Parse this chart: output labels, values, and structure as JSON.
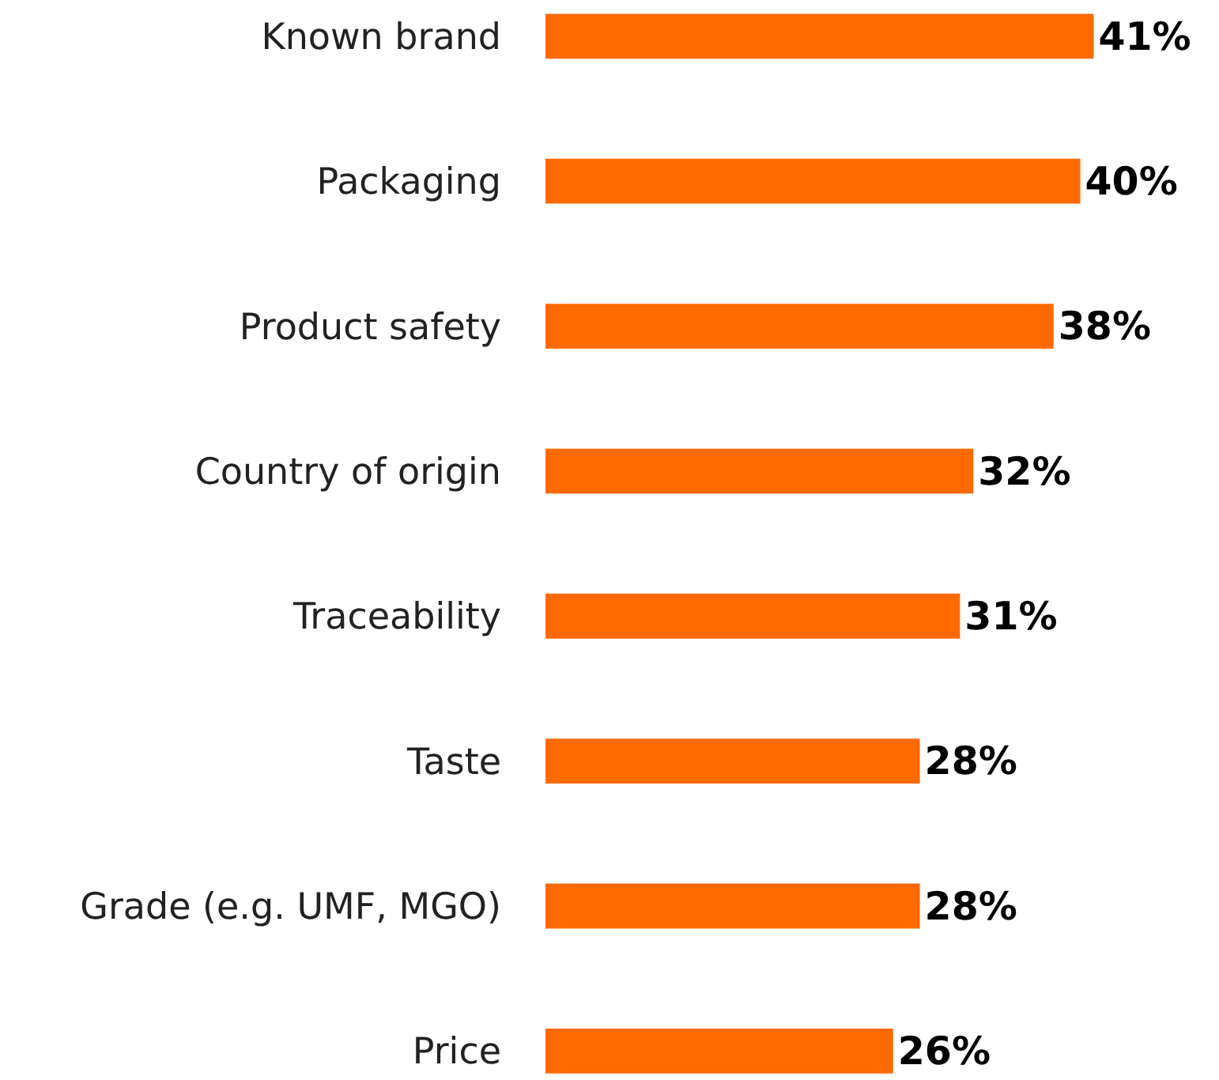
{
  "chart_data": {
    "type": "bar",
    "orientation": "horizontal",
    "categories": [
      "Known brand",
      "Packaging",
      "Product safety",
      "Country of origin",
      "Traceability",
      "Taste",
      "Grade (e.g. UMF, MGO)",
      "Price"
    ],
    "series": [
      {
        "color": "#ff6a00",
        "values": [
          41,
          40,
          38,
          32,
          31,
          28,
          28,
          26
        ],
        "value_labels": [
          "41%",
          "40%",
          "38%",
          "32%",
          "31%",
          "28%",
          "28%",
          "26%"
        ]
      }
    ]
  }
}
